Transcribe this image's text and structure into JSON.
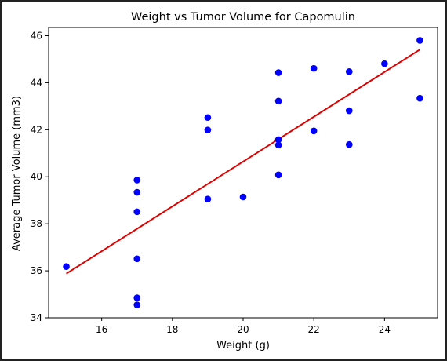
{
  "chart_data": {
    "type": "scatter",
    "title": "Weight vs Tumor Volume for Capomulin",
    "xlabel": "Weight (g)",
    "ylabel": "Average Tumor Volume (mm3)",
    "xlim": [
      14.5,
      25.5
    ],
    "ylim": [
      34,
      46.35
    ],
    "xticks": [
      16,
      18,
      20,
      22,
      24
    ],
    "yticks": [
      34,
      36,
      38,
      40,
      42,
      44,
      46
    ],
    "grid": false,
    "marker_color": "#0000ff",
    "regression_color": "#e00000",
    "points": [
      {
        "x": 15,
        "y": 36.18
      },
      {
        "x": 17,
        "y": 34.55
      },
      {
        "x": 17,
        "y": 34.85
      },
      {
        "x": 17,
        "y": 36.51
      },
      {
        "x": 17,
        "y": 38.51
      },
      {
        "x": 17,
        "y": 39.34
      },
      {
        "x": 17,
        "y": 39.86
      },
      {
        "x": 19,
        "y": 39.05
      },
      {
        "x": 19,
        "y": 41.99
      },
      {
        "x": 19,
        "y": 42.52
      },
      {
        "x": 20,
        "y": 39.14
      },
      {
        "x": 21,
        "y": 40.08
      },
      {
        "x": 21,
        "y": 41.35
      },
      {
        "x": 21,
        "y": 41.58
      },
      {
        "x": 21,
        "y": 43.22
      },
      {
        "x": 21,
        "y": 44.43
      },
      {
        "x": 22,
        "y": 41.95
      },
      {
        "x": 22,
        "y": 44.61
      },
      {
        "x": 23,
        "y": 41.37
      },
      {
        "x": 23,
        "y": 42.81
      },
      {
        "x": 23,
        "y": 44.47
      },
      {
        "x": 24,
        "y": 44.81
      },
      {
        "x": 25,
        "y": 43.34
      },
      {
        "x": 25,
        "y": 45.8
      }
    ],
    "regression_line": {
      "x": [
        15,
        25
      ],
      "y": [
        35.88,
        45.41
      ]
    }
  }
}
